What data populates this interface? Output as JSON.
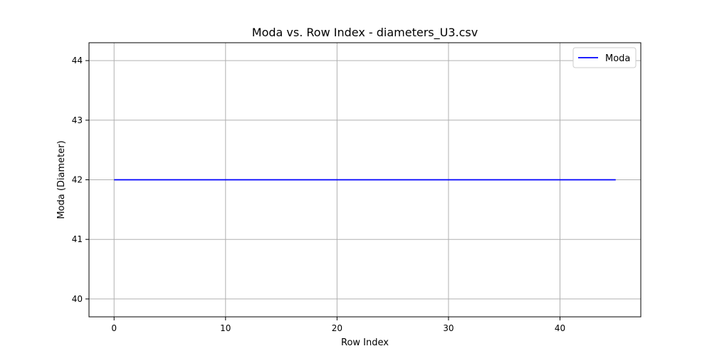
{
  "chart_data": {
    "type": "line",
    "title": "Moda vs. Row Index - diameters_U3.csv",
    "xlabel": "Row Index",
    "ylabel": "Moda (Diameter)",
    "xlim": [
      -2.25,
      47.25
    ],
    "ylim": [
      39.7,
      44.3
    ],
    "xticks": [
      0,
      10,
      20,
      30,
      40
    ],
    "yticks": [
      40,
      41,
      42,
      43,
      44
    ],
    "grid": true,
    "legend_position": "top-right",
    "series": [
      {
        "name": "Moda",
        "color": "#0000ff",
        "x": [
          0,
          45
        ],
        "y": [
          42,
          42
        ]
      }
    ]
  }
}
